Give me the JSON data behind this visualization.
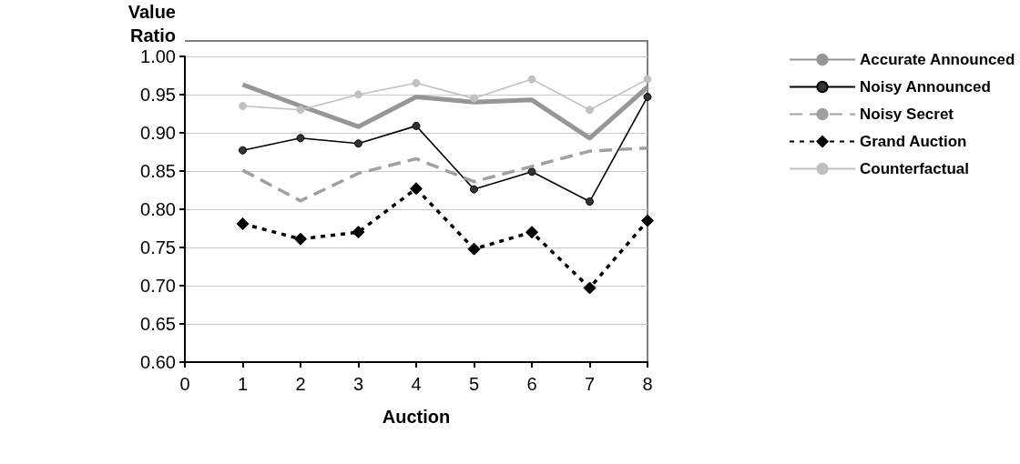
{
  "chart_data": {
    "type": "line",
    "xlabel": "Auction",
    "ylabel": "Value\nRatio",
    "x": [
      1,
      2,
      3,
      4,
      5,
      6,
      7,
      8
    ],
    "xlim": [
      0,
      8
    ],
    "xticks": [
      0,
      1,
      2,
      3,
      4,
      5,
      6,
      7,
      8
    ],
    "ylim": [
      0.6,
      1.0
    ],
    "yticks": [
      {
        "value": 0.6,
        "label": "0.60"
      },
      {
        "value": 0.65,
        "label": "0.65"
      },
      {
        "value": 0.7,
        "label": "0.70"
      },
      {
        "value": 0.75,
        "label": "0.75"
      },
      {
        "value": 0.8,
        "label": "0.80"
      },
      {
        "value": 0.85,
        "label": "0.85"
      },
      {
        "value": 0.9,
        "label": "0.90"
      },
      {
        "value": 0.95,
        "label": "0.95"
      },
      {
        "value": 1.0,
        "label": "1.00"
      }
    ],
    "grid": "y",
    "legend": "right",
    "series": [
      {
        "name": "Accurate Announced",
        "color": "#969696",
        "marker": "none",
        "line_style": "solid",
        "values": [
          0.963,
          0.935,
          0.908,
          0.947,
          0.94,
          0.943,
          0.893,
          0.96
        ]
      },
      {
        "name": "Noisy Announced",
        "color": "#000000",
        "marker": "circle",
        "line_style": "solid",
        "values": [
          0.877,
          0.893,
          0.886,
          0.909,
          0.826,
          0.849,
          0.81,
          0.947
        ]
      },
      {
        "name": "Noisy Secret",
        "color": "#a0a0a0",
        "marker": "none",
        "line_style": "dashed",
        "values": [
          0.851,
          0.811,
          0.847,
          0.866,
          0.836,
          0.856,
          0.876,
          0.88
        ]
      },
      {
        "name": "Grand Auction",
        "color": "#000000",
        "marker": "diamond",
        "line_style": "dotted",
        "values": [
          0.781,
          0.761,
          0.77,
          0.827,
          0.748,
          0.77,
          0.697,
          0.785
        ]
      },
      {
        "name": "Counterfactual",
        "color": "#c0c0c0",
        "marker": "circle",
        "line_style": "solid",
        "values": [
          0.935,
          0.93,
          0.95,
          0.965,
          0.945,
          0.97,
          0.93,
          0.97
        ]
      }
    ]
  }
}
